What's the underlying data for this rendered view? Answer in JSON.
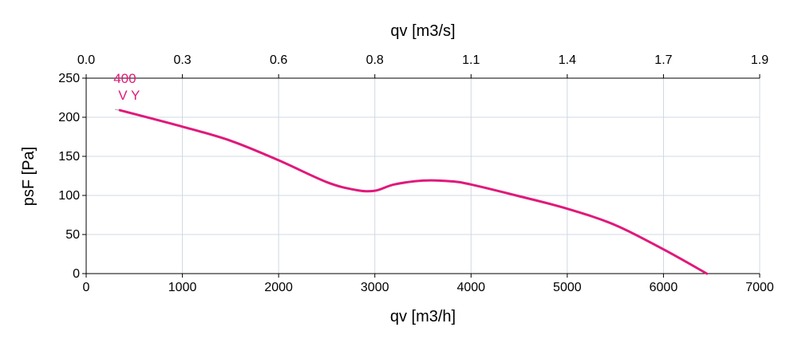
{
  "chart_data": {
    "type": "line",
    "title": "",
    "xlabel": "qv [m3/h]",
    "x2label": "qv [m3/s]",
    "ylabel": "psF [Pa]",
    "xlim": [
      0,
      7000
    ],
    "ylim": [
      0,
      250
    ],
    "x_ticks": [
      0,
      1000,
      2000,
      3000,
      4000,
      5000,
      6000,
      7000
    ],
    "x2_ticks": [
      "0.0",
      "0.3",
      "0.6",
      "0.8",
      "1.1",
      "1.4",
      "1.7",
      "1.9"
    ],
    "y_ticks": [
      0,
      50,
      100,
      150,
      200,
      250
    ],
    "grid": true,
    "colors": {
      "curve": "#e0197a",
      "grid": "#d0d8e4",
      "axis": "#000000"
    },
    "series": [
      {
        "name": "",
        "label_lines": [
          "400",
          "V Y"
        ],
        "x": [
          350,
          1000,
          1500,
          2000,
          2500,
          2800,
          3000,
          3200,
          3500,
          3800,
          4000,
          4500,
          5000,
          5500,
          6000,
          6450
        ],
        "y": [
          209,
          188,
          170,
          145,
          117,
          107,
          106,
          114,
          119,
          118,
          114,
          99,
          83,
          62,
          31,
          0
        ]
      }
    ]
  }
}
